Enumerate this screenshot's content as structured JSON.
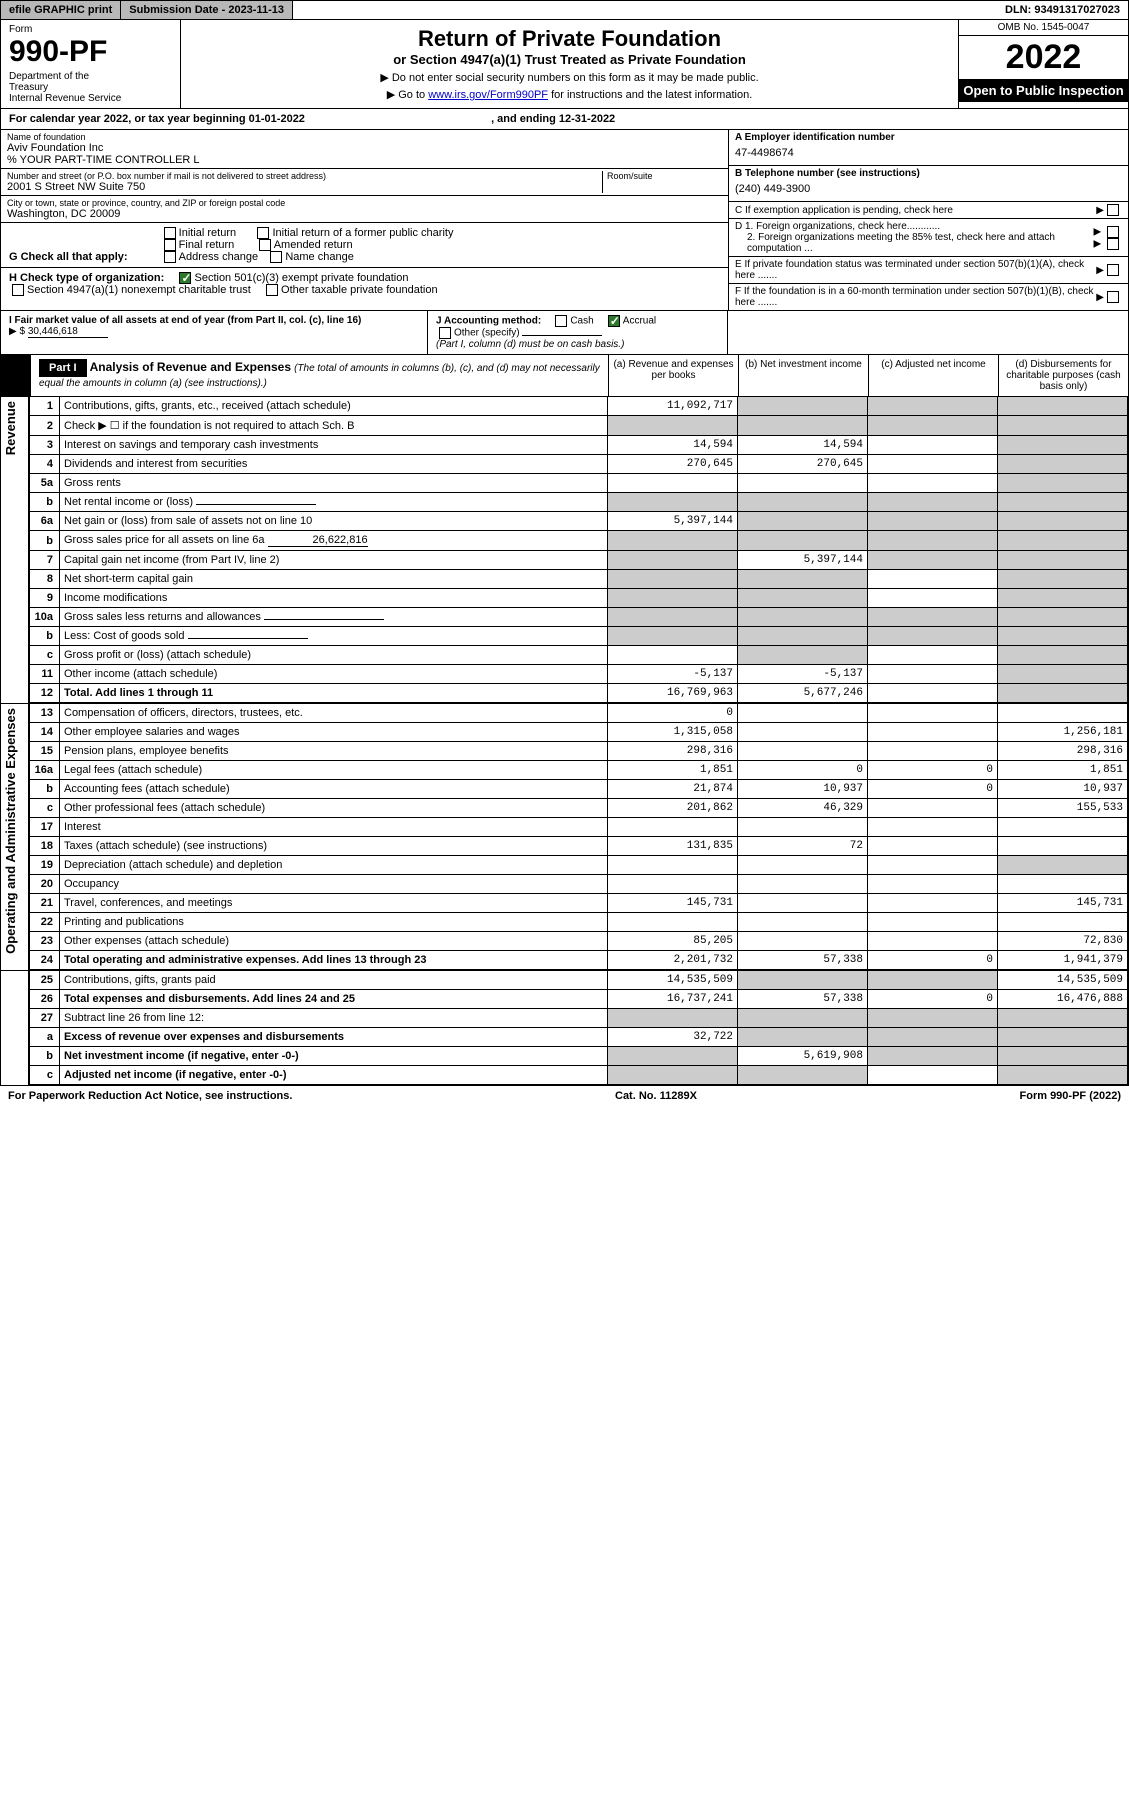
{
  "topbar": {
    "efile": "efile GRAPHIC print",
    "subdate_label": "Submission Date - ",
    "subdate": "2023-11-13",
    "dln_label": "DLN: ",
    "dln": "93491317027023"
  },
  "header": {
    "form_label": "Form",
    "form_number": "990-PF",
    "dept": "Department of the Treasury\nInternal Revenue Service",
    "title": "Return of Private Foundation",
    "subtitle": "or Section 4947(a)(1) Trust Treated as Private Foundation",
    "instr1": "▶ Do not enter social security numbers on this form as it may be made public.",
    "instr2_pre": "▶ Go to ",
    "instr2_link": "www.irs.gov/Form990PF",
    "instr2_post": " for instructions and the latest information.",
    "omb": "OMB No. 1545-0047",
    "year": "2022",
    "open": "Open to Public Inspection"
  },
  "calyear": {
    "pre": "For calendar year 2022, or tax year beginning ",
    "begin": "01-01-2022",
    "mid": " , and ending ",
    "end": "12-31-2022"
  },
  "foundation": {
    "name_label": "Name of foundation",
    "name": "Aviv Foundation Inc",
    "care_of": "% YOUR PART-TIME CONTROLLER L",
    "addr_label": "Number and street (or P.O. box number if mail is not delivered to street address)",
    "addr": "2001 S Street NW Suite 750",
    "room_label": "Room/suite",
    "city_label": "City or town, state or province, country, and ZIP or foreign postal code",
    "city": "Washington, DC  20009"
  },
  "right_info": {
    "a_label": "A Employer identification number",
    "a_val": "47-4498674",
    "b_label": "B Telephone number (see instructions)",
    "b_val": "(240) 449-3900",
    "c_label": "C If exemption application is pending, check here",
    "d1": "D 1. Foreign organizations, check here............",
    "d2": "2. Foreign organizations meeting the 85% test, check here and attach computation ...",
    "e": "E  If private foundation status was terminated under section 507(b)(1)(A), check here .......",
    "f": "F  If the foundation is in a 60-month termination under section 507(b)(1)(B), check here ......."
  },
  "checks": {
    "g_label": "G Check all that apply:",
    "g_opts": [
      "Initial return",
      "Final return",
      "Address change",
      "Initial return of a former public charity",
      "Amended return",
      "Name change"
    ],
    "h_label": "H Check type of organization:",
    "h1": "Section 501(c)(3) exempt private foundation",
    "h2": "Section 4947(a)(1) nonexempt charitable trust",
    "h3": "Other taxable private foundation",
    "i_label": "I Fair market value of all assets at end of year (from Part II, col. (c), line 16)",
    "i_val": "30,446,618",
    "j_label": "J Accounting method:",
    "j_opts": [
      "Cash",
      "Accrual"
    ],
    "j_other": "Other (specify)",
    "j_note": "(Part I, column (d) must be on cash basis.)"
  },
  "part1": {
    "label": "Part I",
    "title": "Analysis of Revenue and Expenses",
    "title_note": "(The total of amounts in columns (b), (c), and (d) may not necessarily equal the amounts in column (a) (see instructions).)",
    "cols": {
      "a": "(a) Revenue and expenses per books",
      "b": "(b) Net investment income",
      "c": "(c) Adjusted net income",
      "d": "(d) Disbursements for charitable purposes (cash basis only)"
    }
  },
  "sections": {
    "revenue": "Revenue",
    "expenses": "Operating and Administrative Expenses"
  },
  "rows": [
    {
      "n": "1",
      "desc": "Contributions, gifts, grants, etc., received (attach schedule)",
      "a": "11,092,717",
      "b": "",
      "c": "",
      "d": "",
      "d_shade": true,
      "c_shade": true,
      "b_shade": true
    },
    {
      "n": "2",
      "desc": "Check ▶ ☐ if the foundation is not required to attach Sch. B",
      "a": "",
      "b": "",
      "c": "",
      "d": "",
      "all_shade": true
    },
    {
      "n": "3",
      "desc": "Interest on savings and temporary cash investments",
      "a": "14,594",
      "b": "14,594",
      "c": "",
      "d": "",
      "d_shade": true
    },
    {
      "n": "4",
      "desc": "Dividends and interest from securities",
      "a": "270,645",
      "b": "270,645",
      "c": "",
      "d": "",
      "d_shade": true
    },
    {
      "n": "5a",
      "desc": "Gross rents",
      "a": "",
      "b": "",
      "c": "",
      "d": "",
      "d_shade": true
    },
    {
      "n": "b",
      "desc": "Net rental income or (loss)",
      "a": "",
      "b": "",
      "c": "",
      "d": "",
      "all_shade": true,
      "inline_box": true
    },
    {
      "n": "6a",
      "desc": "Net gain or (loss) from sale of assets not on line 10",
      "a": "5,397,144",
      "b": "",
      "c": "",
      "d": "",
      "d_shade": true,
      "c_shade": true,
      "b_shade": true
    },
    {
      "n": "b",
      "desc": "Gross sales price for all assets on line 6a",
      "inline_val": "26,622,816",
      "all_shade": true
    },
    {
      "n": "7",
      "desc": "Capital gain net income (from Part IV, line 2)",
      "a": "",
      "b": "5,397,144",
      "c": "",
      "d": "",
      "a_shade": true,
      "c_shade": true,
      "d_shade": true
    },
    {
      "n": "8",
      "desc": "Net short-term capital gain",
      "a": "",
      "b": "",
      "c": "",
      "d": "",
      "a_shade": true,
      "b_shade": true,
      "d_shade": true
    },
    {
      "n": "9",
      "desc": "Income modifications",
      "a": "",
      "b": "",
      "c": "",
      "d": "",
      "a_shade": true,
      "b_shade": true,
      "d_shade": true
    },
    {
      "n": "10a",
      "desc": "Gross sales less returns and allowances",
      "inline_box": true,
      "all_shade": true
    },
    {
      "n": "b",
      "desc": "Less: Cost of goods sold",
      "inline_box": true,
      "all_shade": true
    },
    {
      "n": "c",
      "desc": "Gross profit or (loss) (attach schedule)",
      "a": "",
      "b": "",
      "c": "",
      "d": "",
      "b_shade": true,
      "d_shade": true
    },
    {
      "n": "11",
      "desc": "Other income (attach schedule)",
      "a": "-5,137",
      "b": "-5,137",
      "c": "",
      "d": "",
      "d_shade": true
    },
    {
      "n": "12",
      "desc": "Total. Add lines 1 through 11",
      "bold": true,
      "a": "16,769,963",
      "b": "5,677,246",
      "c": "",
      "d": "",
      "d_shade": true
    },
    {
      "n": "13",
      "desc": "Compensation of officers, directors, trustees, etc.",
      "a": "0",
      "b": "",
      "c": "",
      "d": ""
    },
    {
      "n": "14",
      "desc": "Other employee salaries and wages",
      "a": "1,315,058",
      "b": "",
      "c": "",
      "d": "1,256,181"
    },
    {
      "n": "15",
      "desc": "Pension plans, employee benefits",
      "a": "298,316",
      "b": "",
      "c": "",
      "d": "298,316"
    },
    {
      "n": "16a",
      "desc": "Legal fees (attach schedule)",
      "a": "1,851",
      "b": "0",
      "c": "0",
      "d": "1,851"
    },
    {
      "n": "b",
      "desc": "Accounting fees (attach schedule)",
      "a": "21,874",
      "b": "10,937",
      "c": "0",
      "d": "10,937"
    },
    {
      "n": "c",
      "desc": "Other professional fees (attach schedule)",
      "a": "201,862",
      "b": "46,329",
      "c": "",
      "d": "155,533"
    },
    {
      "n": "17",
      "desc": "Interest",
      "a": "",
      "b": "",
      "c": "",
      "d": ""
    },
    {
      "n": "18",
      "desc": "Taxes (attach schedule) (see instructions)",
      "a": "131,835",
      "b": "72",
      "c": "",
      "d": ""
    },
    {
      "n": "19",
      "desc": "Depreciation (attach schedule) and depletion",
      "a": "",
      "b": "",
      "c": "",
      "d": "",
      "d_shade": true
    },
    {
      "n": "20",
      "desc": "Occupancy",
      "a": "",
      "b": "",
      "c": "",
      "d": ""
    },
    {
      "n": "21",
      "desc": "Travel, conferences, and meetings",
      "a": "145,731",
      "b": "",
      "c": "",
      "d": "145,731"
    },
    {
      "n": "22",
      "desc": "Printing and publications",
      "a": "",
      "b": "",
      "c": "",
      "d": ""
    },
    {
      "n": "23",
      "desc": "Other expenses (attach schedule)",
      "a": "85,205",
      "b": "",
      "c": "",
      "d": "72,830"
    },
    {
      "n": "24",
      "desc": "Total operating and administrative expenses. Add lines 13 through 23",
      "bold": true,
      "a": "2,201,732",
      "b": "57,338",
      "c": "0",
      "d": "1,941,379"
    },
    {
      "n": "25",
      "desc": "Contributions, gifts, grants paid",
      "a": "14,535,509",
      "b": "",
      "c": "",
      "d": "14,535,509",
      "b_shade": true,
      "c_shade": true
    },
    {
      "n": "26",
      "desc": "Total expenses and disbursements. Add lines 24 and 25",
      "bold": true,
      "a": "16,737,241",
      "b": "57,338",
      "c": "0",
      "d": "16,476,888"
    },
    {
      "n": "27",
      "desc": "Subtract line 26 from line 12:",
      "a": "",
      "b": "",
      "c": "",
      "d": "",
      "all_shade": true
    },
    {
      "n": "a",
      "desc": "Excess of revenue over expenses and disbursements",
      "bold": true,
      "a": "32,722",
      "b": "",
      "c": "",
      "d": "",
      "b_shade": true,
      "c_shade": true,
      "d_shade": true
    },
    {
      "n": "b",
      "desc": "Net investment income (if negative, enter -0-)",
      "bold": true,
      "a": "",
      "b": "5,619,908",
      "c": "",
      "d": "",
      "a_shade": true,
      "c_shade": true,
      "d_shade": true
    },
    {
      "n": "c",
      "desc": "Adjusted net income (if negative, enter -0-)",
      "bold": true,
      "a": "",
      "b": "",
      "c": "",
      "d": "",
      "a_shade": true,
      "b_shade": true,
      "d_shade": true
    }
  ],
  "footer": {
    "left": "For Paperwork Reduction Act Notice, see instructions.",
    "mid": "Cat. No. 11289X",
    "right": "Form 990-PF (2022)"
  }
}
